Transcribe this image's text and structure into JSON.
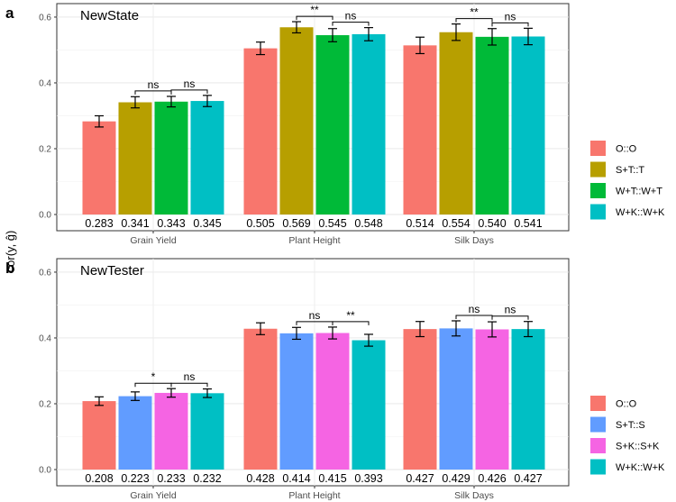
{
  "y_axis_label": "cor(y, ĝ)",
  "chart_data": [
    {
      "tag": "a",
      "type": "bar",
      "title": "NewState",
      "categories": [
        "Grain Yield",
        "Plant Height",
        "Silk Days"
      ],
      "ylim": [
        0,
        0.63
      ],
      "yticks": [
        "0.0",
        "0.2",
        "0.4",
        "0.6"
      ],
      "ylabel": "cor(y, ĝ)",
      "legend_position": "right",
      "series": [
        {
          "name": "O::O",
          "color": "#F8766D",
          "values": [
            0.283,
            0.505,
            0.514
          ],
          "errors": [
            0.017,
            0.019,
            0.025
          ]
        },
        {
          "name": "S+T::T",
          "color": "#B79F00",
          "values": [
            0.341,
            0.569,
            0.554
          ],
          "errors": [
            0.017,
            0.017,
            0.025
          ]
        },
        {
          "name": "W+T::W+T",
          "color": "#00BA38",
          "values": [
            0.343,
            0.545,
            0.54
          ],
          "errors": [
            0.016,
            0.02,
            0.025
          ]
        },
        {
          "name": "W+K::W+K",
          "color": "#00BFC4",
          "values": [
            0.345,
            0.548,
            0.541
          ],
          "errors": [
            0.017,
            0.02,
            0.025
          ]
        }
      ],
      "value_labels": [
        [
          "0.283",
          "0.341",
          "0.343",
          "0.345"
        ],
        [
          "0.505",
          "0.569",
          "0.545",
          "0.548"
        ],
        [
          "0.514",
          "0.554",
          "0.540",
          "0.541"
        ]
      ],
      "significance": [
        {
          "category": 0,
          "from": 1,
          "to": 2,
          "label": "ns"
        },
        {
          "category": 0,
          "from": 2,
          "to": 3,
          "label": "ns"
        },
        {
          "category": 1,
          "from": 1,
          "to": 2,
          "label": "**"
        },
        {
          "category": 1,
          "from": 2,
          "to": 3,
          "label": "ns"
        },
        {
          "category": 2,
          "from": 1,
          "to": 2,
          "label": "**"
        },
        {
          "category": 2,
          "from": 2,
          "to": 3,
          "label": "ns"
        }
      ]
    },
    {
      "tag": "b",
      "type": "bar",
      "title": "NewTester",
      "categories": [
        "Grain Yield",
        "Plant Height",
        "Silk Days"
      ],
      "ylim": [
        0,
        0.63
      ],
      "yticks": [
        "0.0",
        "0.2",
        "0.4",
        "0.6"
      ],
      "ylabel": "cor(y, ĝ)",
      "legend_position": "right",
      "series": [
        {
          "name": "O::O",
          "color": "#F8766D",
          "values": [
            0.208,
            0.428,
            0.427
          ],
          "errors": [
            0.013,
            0.018,
            0.023
          ]
        },
        {
          "name": "S+T::S",
          "color": "#619CFF",
          "values": [
            0.223,
            0.414,
            0.429
          ],
          "errors": [
            0.013,
            0.018,
            0.023
          ]
        },
        {
          "name": "S+K::S+K",
          "color": "#F564E3",
          "values": [
            0.233,
            0.415,
            0.426
          ],
          "errors": [
            0.013,
            0.018,
            0.023
          ]
        },
        {
          "name": "W+K::W+K",
          "color": "#00BFC4",
          "values": [
            0.232,
            0.393,
            0.427
          ],
          "errors": [
            0.013,
            0.018,
            0.023
          ]
        }
      ],
      "value_labels": [
        [
          "0.208",
          "0.223",
          "0.233",
          "0.232"
        ],
        [
          "0.428",
          "0.414",
          "0.415",
          "0.393"
        ],
        [
          "0.427",
          "0.429",
          "0.426",
          "0.427"
        ]
      ],
      "significance": [
        {
          "category": 0,
          "from": 1,
          "to": 2,
          "label": "*"
        },
        {
          "category": 0,
          "from": 2,
          "to": 3,
          "label": "ns"
        },
        {
          "category": 1,
          "from": 1,
          "to": 2,
          "label": "ns"
        },
        {
          "category": 1,
          "from": 2,
          "to": 3,
          "label": "**"
        },
        {
          "category": 2,
          "from": 1,
          "to": 2,
          "label": "ns"
        },
        {
          "category": 2,
          "from": 2,
          "to": 3,
          "label": "ns"
        }
      ]
    }
  ]
}
